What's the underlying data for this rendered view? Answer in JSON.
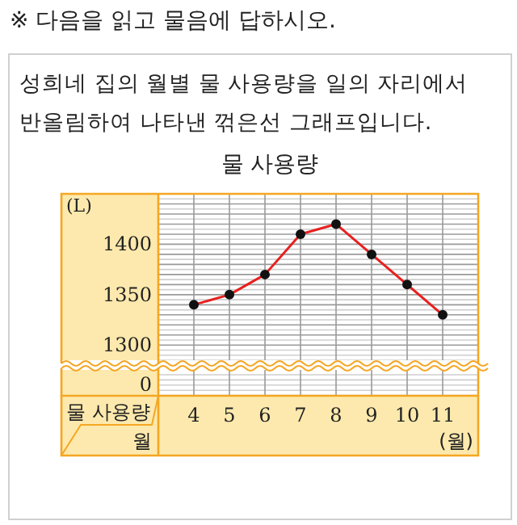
{
  "chart_data": {
    "type": "line",
    "title": "물 사용량",
    "ylabel": "(L)",
    "xlabel": "(월)",
    "annotations": [
      "※ 다음을 읽고 물음에 답하시오.",
      "성희네 집의 월별 물 사용량을 일의 자리에서 반올림하여 나타낸 꺾은선 그래프입니다.",
      "물 사용량",
      "월",
      "0"
    ],
    "categories": [
      "4",
      "5",
      "6",
      "7",
      "8",
      "9",
      "10",
      "11"
    ],
    "values": [
      1340,
      1350,
      1370,
      1410,
      1420,
      1390,
      1360,
      1330
    ],
    "color": "#e8201f",
    "marker": "circle",
    "line_style": "solid",
    "grid": true,
    "ylim": [
      1285,
      1450
    ],
    "yticks": [
      1300,
      1350,
      1400
    ]
  }
}
